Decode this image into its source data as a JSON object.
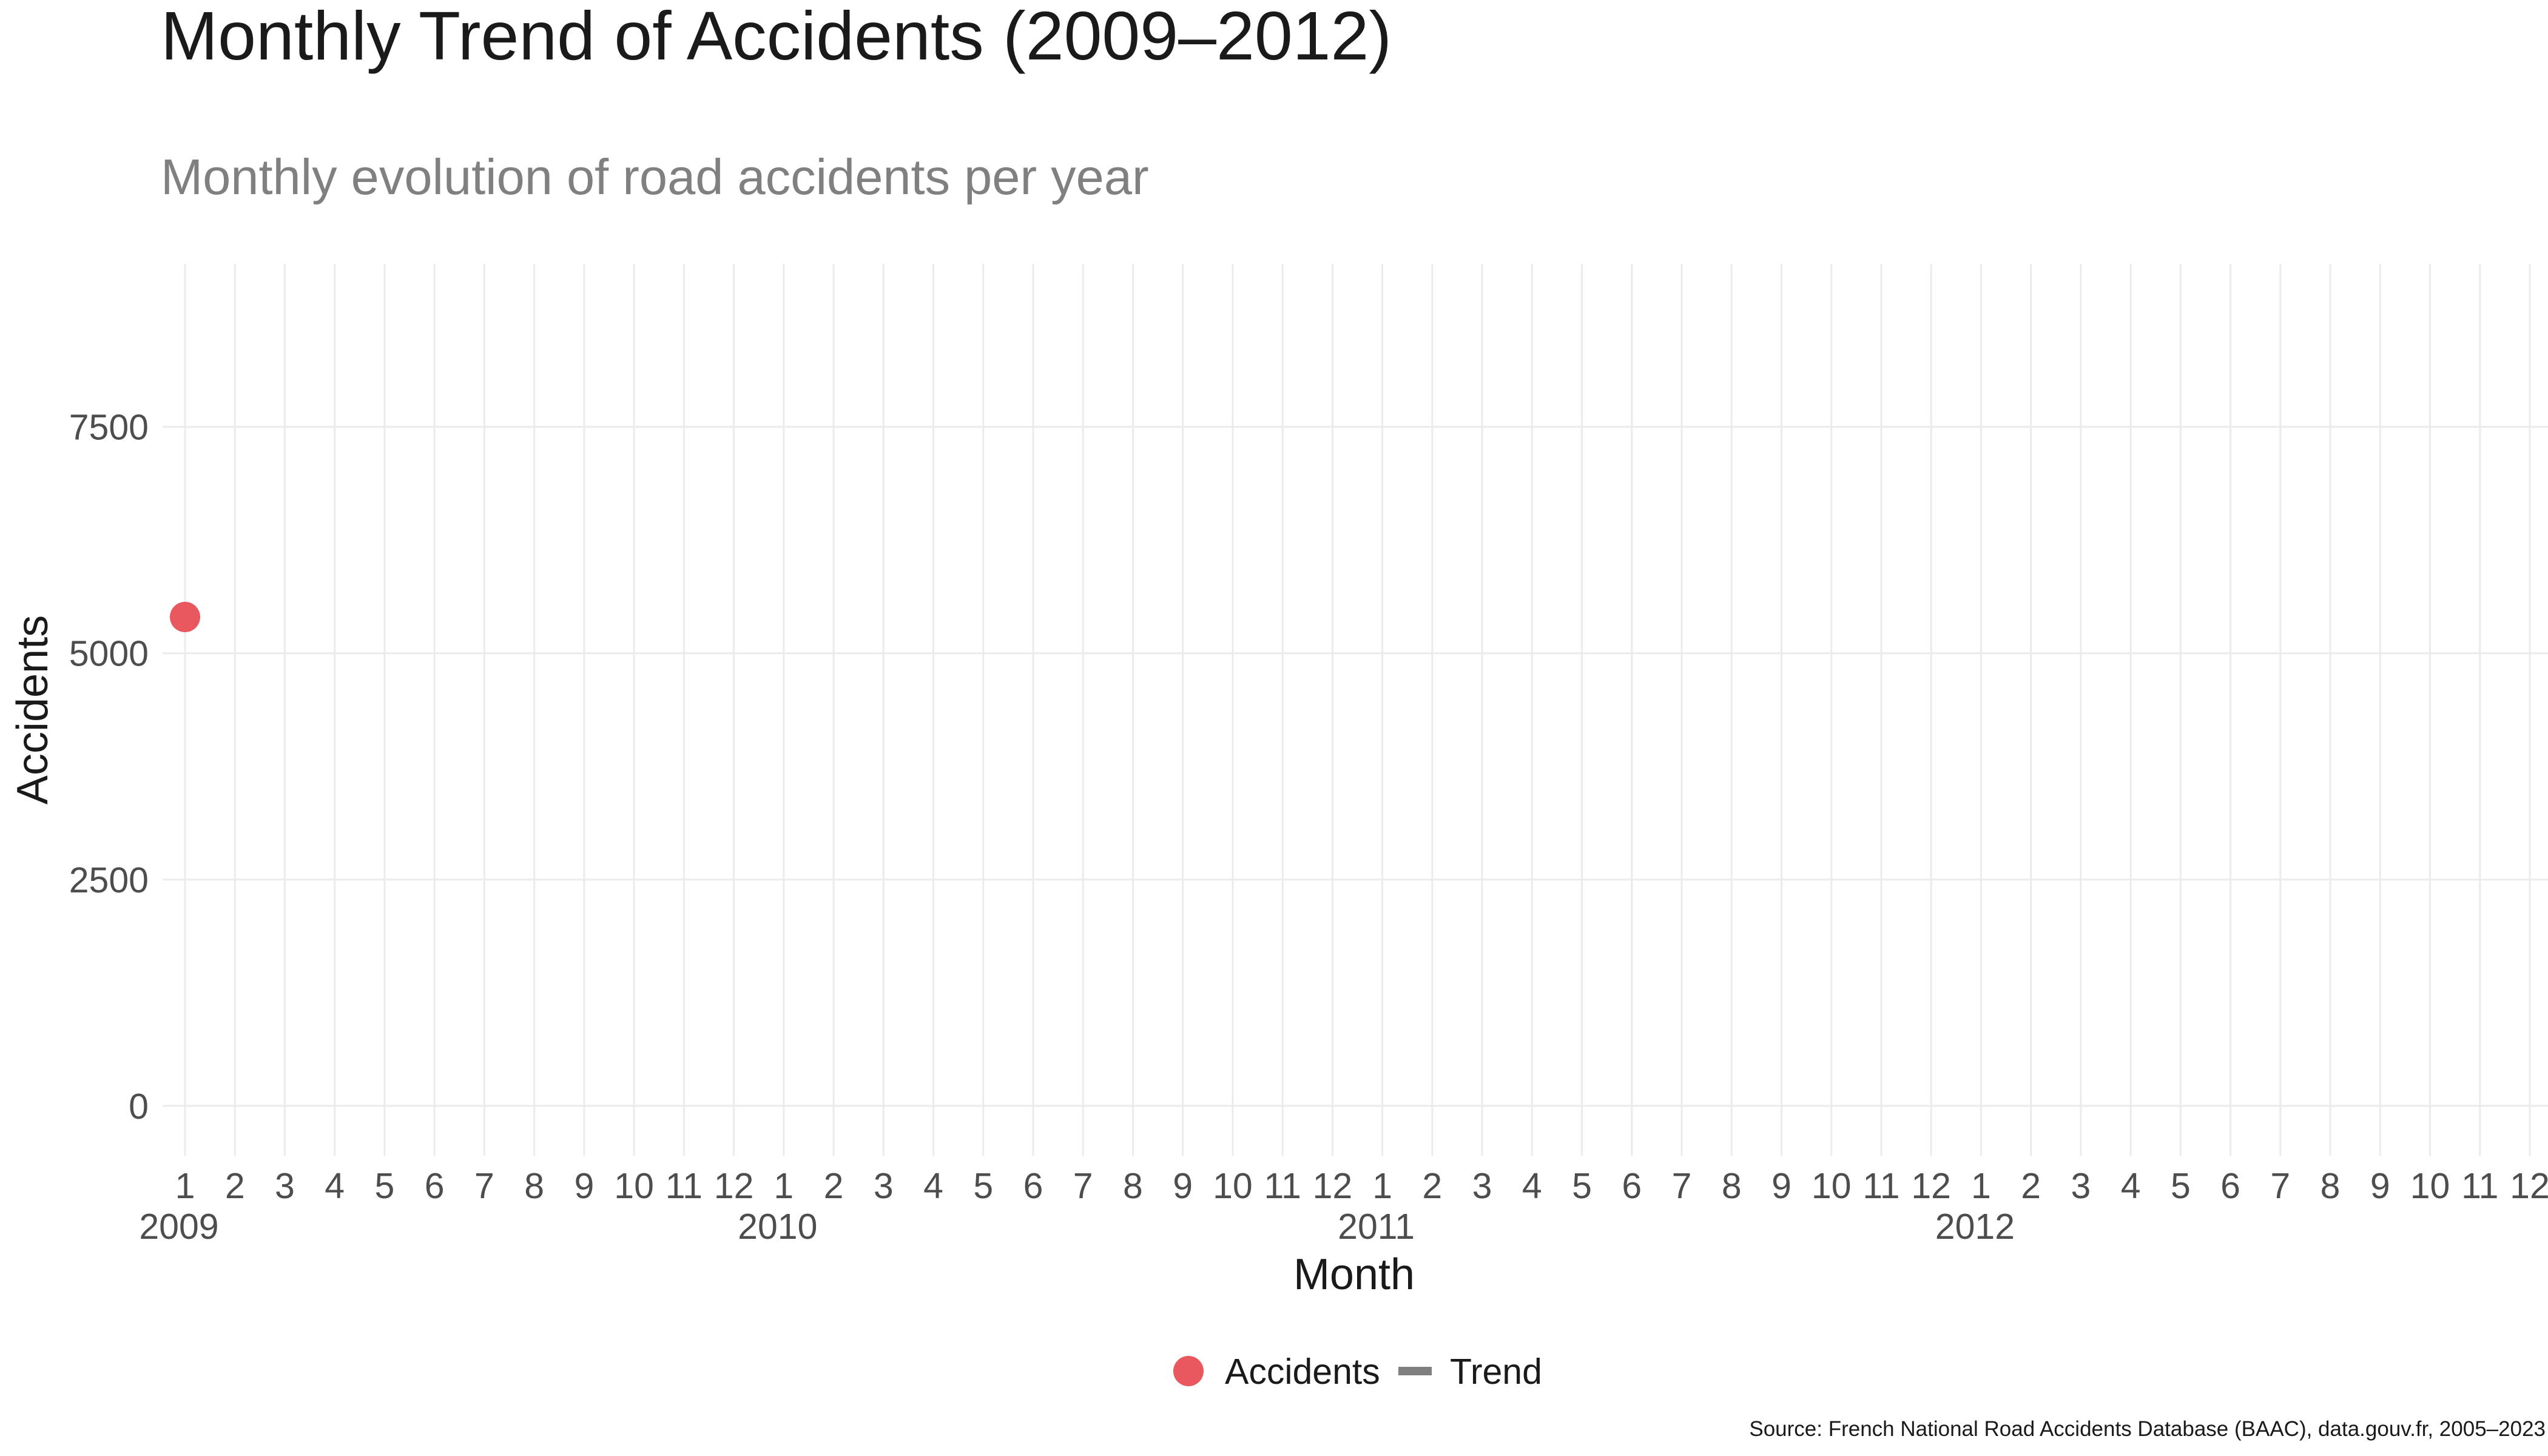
{
  "chart_data": {
    "type": "line",
    "title": "Monthly Trend of Accidents (2009–2012)",
    "subtitle": "Monthly evolution of road accidents per year",
    "xlabel": "Month",
    "ylabel": "Accidents",
    "caption": "Source: French National Road Accidents Database (BAAC), data.gouv.fr, 2005–2023",
    "x_month_ticks": [
      "1",
      "2",
      "3",
      "4",
      "5",
      "6",
      "7",
      "8",
      "9",
      "10",
      "11",
      "12"
    ],
    "x_year_labels": [
      "2009",
      "2010",
      "2011",
      "2012"
    ],
    "y_ticks": [
      0,
      2500,
      5000,
      7500
    ],
    "ylim": [
      -550,
      9300
    ],
    "grid": true,
    "legend_position": "bottom",
    "legend": [
      {
        "label": "Accidents",
        "shape": "point",
        "color": "#e8585e"
      },
      {
        "label": "Trend",
        "shape": "line",
        "color": "#808080"
      }
    ],
    "series": [
      {
        "name": "Accidents",
        "color": "#e8585e",
        "points": [
          {
            "year": 2009,
            "month": 1,
            "value": 5400
          }
        ]
      }
    ]
  }
}
